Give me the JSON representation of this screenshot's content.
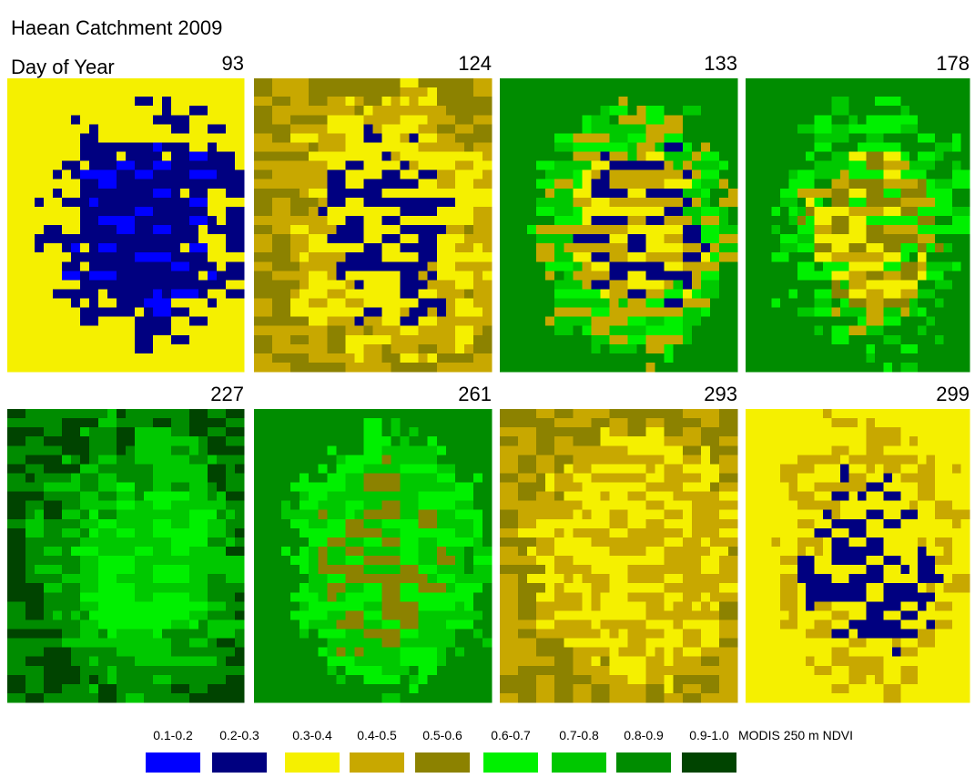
{
  "title": "Haean Catchment 2009",
  "day_of_year_label": "Day of Year",
  "panels": [
    {
      "day": 93
    },
    {
      "day": 124
    },
    {
      "day": 133
    },
    {
      "day": 178
    },
    {
      "day": 227
    },
    {
      "day": 261
    },
    {
      "day": 293
    },
    {
      "day": 299
    }
  ],
  "legend": {
    "title": "MODIS 250 m NDVI",
    "classes": [
      {
        "label": "0.1-0.2",
        "color": "#0000ff"
      },
      {
        "label": "0.2-0.3",
        "color": "#000080"
      },
      {
        "label": "0.3-0.4",
        "color": "#f5f000"
      },
      {
        "label": "0.4-0.5",
        "color": "#c8a800"
      },
      {
        "label": "0.5-0.6",
        "color": "#8c8200"
      },
      {
        "label": "0.6-0.7",
        "color": "#00f000"
      },
      {
        "label": "0.7-0.8",
        "color": "#00c800"
      },
      {
        "label": "0.8-0.9",
        "color": "#008c00"
      },
      {
        "label": "0.9-1.0",
        "color": "#004400"
      }
    ]
  }
}
